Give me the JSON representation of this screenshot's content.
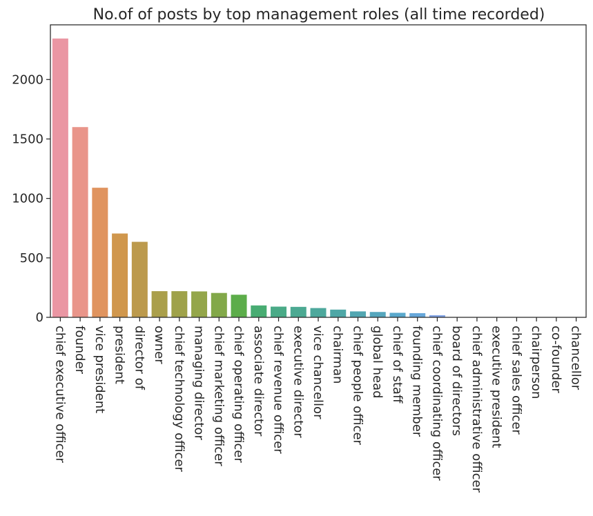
{
  "chart_data": {
    "type": "bar",
    "title": "No.of of posts by top management roles (all time recorded)",
    "xlabel": "",
    "ylabel": "",
    "categories": [
      "chief executive officer",
      "founder",
      "vice president",
      "president",
      "director of",
      "owner",
      "chief technology officer",
      "managing director",
      "chief marketing officer",
      "chief operating officer",
      "associate director",
      "chief revenue officer",
      "executive director",
      "vice chancellor",
      "chairman",
      "chief people officer",
      "global head",
      "chief of staff",
      "founding member",
      "chief coordinating officer",
      "board of directors",
      "chief administrative officer",
      "executive president",
      "chief sales officer",
      "chairperson",
      "co-founder",
      "chancellor"
    ],
    "values": [
      2345,
      1600,
      1090,
      705,
      635,
      220,
      220,
      218,
      205,
      190,
      100,
      90,
      88,
      78,
      65,
      50,
      45,
      38,
      35,
      18,
      2,
      2,
      1,
      1,
      1,
      1,
      1
    ],
    "colors": [
      "#ea96a3",
      "#e9958a",
      "#e0945f",
      "#d0974d",
      "#bc9a4d",
      "#aa9f4b",
      "#9fa24a",
      "#94a64a",
      "#82a849",
      "#5cad4a",
      "#48ac72",
      "#4aaa87",
      "#4ca992",
      "#4da89c",
      "#4fa7a6",
      "#52a6b1",
      "#55a6bd",
      "#5aa8cc",
      "#67a7da",
      "#82a3e4",
      "#a09cea",
      "#b497ea",
      "#c690e8",
      "#d489e6",
      "#e18ae0",
      "#e78ed1",
      "#e992bd"
    ],
    "yticks": [
      0,
      500,
      1000,
      1500,
      2000
    ],
    "ylim": [
      0,
      2460
    ],
    "grid": false,
    "legend": "none"
  }
}
